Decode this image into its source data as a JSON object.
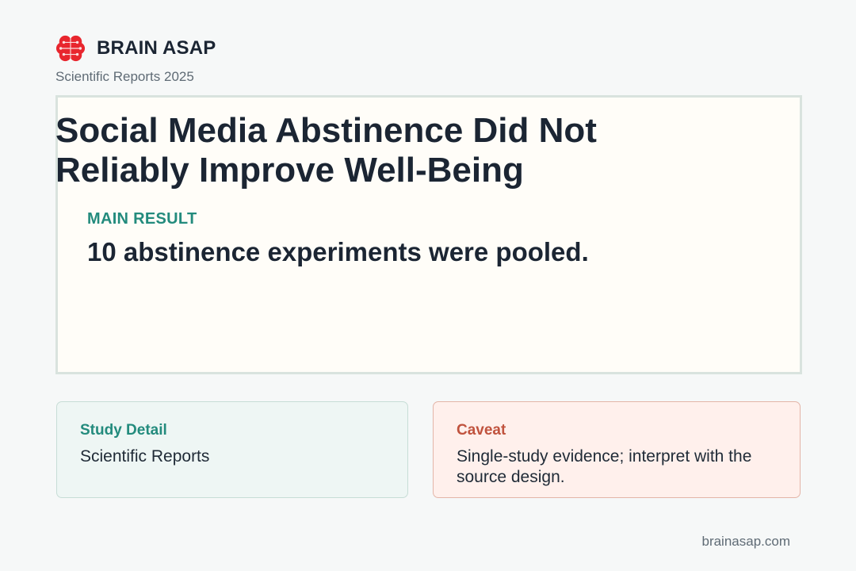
{
  "brand": {
    "name": "BRAIN ASAP",
    "icon": "brain-icon",
    "icon_color": "#e8262e"
  },
  "source": "Scientific Reports 2025",
  "headline": {
    "title_line1": "Social Media Abstinence Did Not",
    "title_line2": "Reliably Improve Well-Being",
    "label": "MAIN RESULT",
    "result": "10 abstinence experiments were pooled."
  },
  "cards": {
    "detail": {
      "title": "Study Detail",
      "body": "Scientific Reports"
    },
    "caveat": {
      "title": "Caveat",
      "body_line1": "Single-study evidence; interpret with the",
      "body_line2": "source design."
    }
  },
  "footer": "brainasap.com",
  "colors": {
    "accent_teal": "#238b7d",
    "accent_red": "#c0533e",
    "text_dark": "#1b2533",
    "background": "#f6f8f8"
  }
}
